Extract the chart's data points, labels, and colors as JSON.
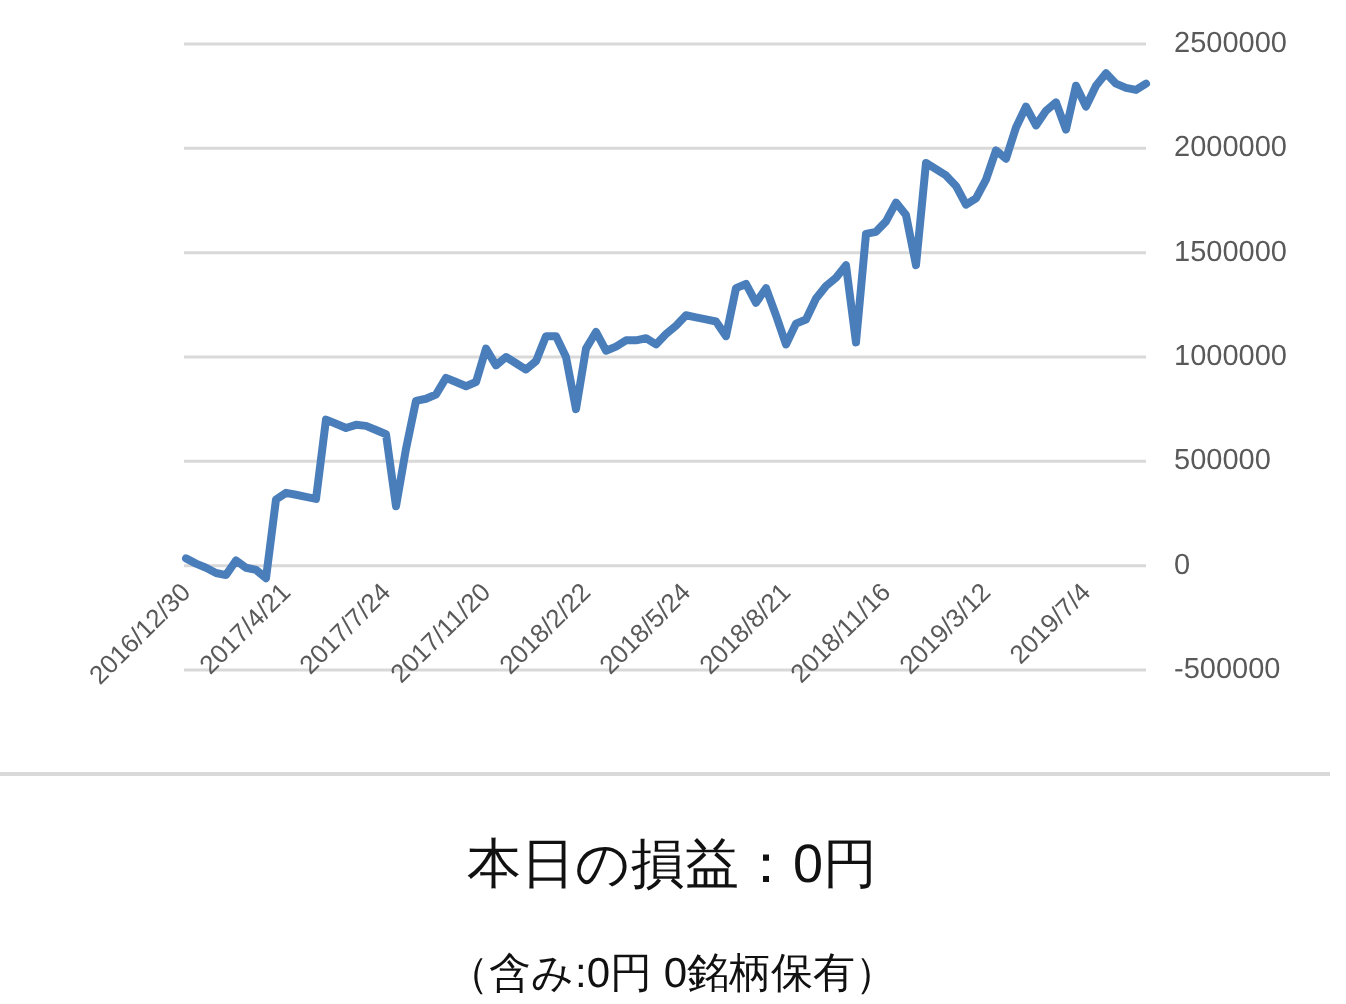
{
  "chart_data": {
    "type": "line",
    "categories": [
      "2016/12/30",
      null,
      null,
      null,
      null,
      null,
      null,
      null,
      null,
      null,
      "2017/4/21",
      null,
      null,
      null,
      null,
      null,
      null,
      null,
      null,
      null,
      "2017/7/24",
      null,
      null,
      null,
      null,
      null,
      null,
      null,
      null,
      null,
      "2017/11/20",
      null,
      null,
      null,
      null,
      null,
      null,
      null,
      null,
      null,
      "2018/2/22",
      null,
      null,
      null,
      null,
      null,
      null,
      null,
      null,
      null,
      "2018/5/24",
      null,
      null,
      null,
      null,
      null,
      null,
      null,
      null,
      null,
      "2018/8/21",
      null,
      null,
      null,
      null,
      null,
      null,
      null,
      null,
      null,
      "2018/11/16",
      null,
      null,
      null,
      null,
      null,
      null,
      null,
      null,
      null,
      "2019/3/12",
      null,
      null,
      null,
      null,
      null,
      null,
      null,
      null,
      null,
      "2019/7/4",
      null,
      null,
      null,
      null,
      null,
      null
    ],
    "values": [
      35000,
      10000,
      -10000,
      -35000,
      -45000,
      25000,
      -10000,
      -20000,
      -60000,
      317000,
      349000,
      340000,
      330000,
      320000,
      700000,
      680000,
      660000,
      675000,
      670000,
      650000,
      630000,
      285000,
      560000,
      790000,
      800000,
      820000,
      900000,
      880000,
      860000,
      880000,
      1040000,
      960000,
      1000000,
      970000,
      940000,
      980000,
      1100000,
      1100000,
      1000000,
      750000,
      1040000,
      1120000,
      1030000,
      1050000,
      1080000,
      1080000,
      1090000,
      1060000,
      1110000,
      1150000,
      1200000,
      1190000,
      1180000,
      1170000,
      1100000,
      1330000,
      1350000,
      1260000,
      1330000,
      1200000,
      1060000,
      1160000,
      1180000,
      1280000,
      1340000,
      1380000,
      1440000,
      1070000,
      1590000,
      1600000,
      1650000,
      1740000,
      1680000,
      1440000,
      1930000,
      1900000,
      1870000,
      1820000,
      1730000,
      1760000,
      1850000,
      1990000,
      1950000,
      2100000,
      2200000,
      2110000,
      2180000,
      2220000,
      2090000,
      2300000,
      2200000,
      2300000,
      2360000,
      2310000,
      2290000,
      2280000,
      2310000
    ],
    "color": "#4a7ebb",
    "ylim": [
      -500000,
      2500000
    ],
    "yticks": [
      -500000,
      0,
      500000,
      1000000,
      1500000,
      2000000,
      2500000
    ],
    "grid": "y",
    "marker": "none",
    "annotations": [
      "本日の損益：0円",
      "（含み:0円 0銘柄保有）"
    ]
  }
}
